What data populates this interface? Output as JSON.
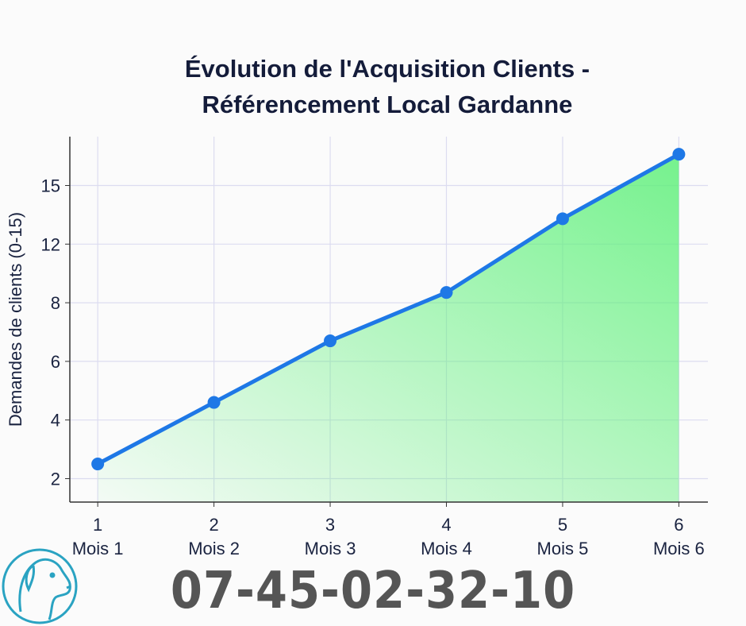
{
  "chart_data": {
    "type": "line",
    "title": [
      "Évolution de l'Acquisition Clients -",
      "Référencement Local Gardanne"
    ],
    "y_label": "Demandes de clients (0-15)",
    "x": [
      1,
      2,
      3,
      4,
      5,
      6
    ],
    "categories": [
      "Mois 1",
      "Mois 2",
      "Mois 3",
      "Mois 4",
      "Mois 5",
      "Mois 6"
    ],
    "xlim": [
      0.76,
      6.25
    ],
    "xticks": [
      1,
      2,
      3,
      4,
      5,
      6
    ],
    "ylim": [
      1.2,
      17.5
    ],
    "yticks": [
      2,
      4,
      6,
      8,
      12,
      15
    ],
    "series": [
      {
        "name": "Demandes",
        "color": "#1e78e6",
        "values": [
          2.5,
          4.6,
          6.7,
          8.7,
          13.3,
          16.6
        ]
      }
    ],
    "area_color": "#5ef07a",
    "grid": true
  },
  "footer": {
    "phone": "07-45-02-32-10"
  }
}
